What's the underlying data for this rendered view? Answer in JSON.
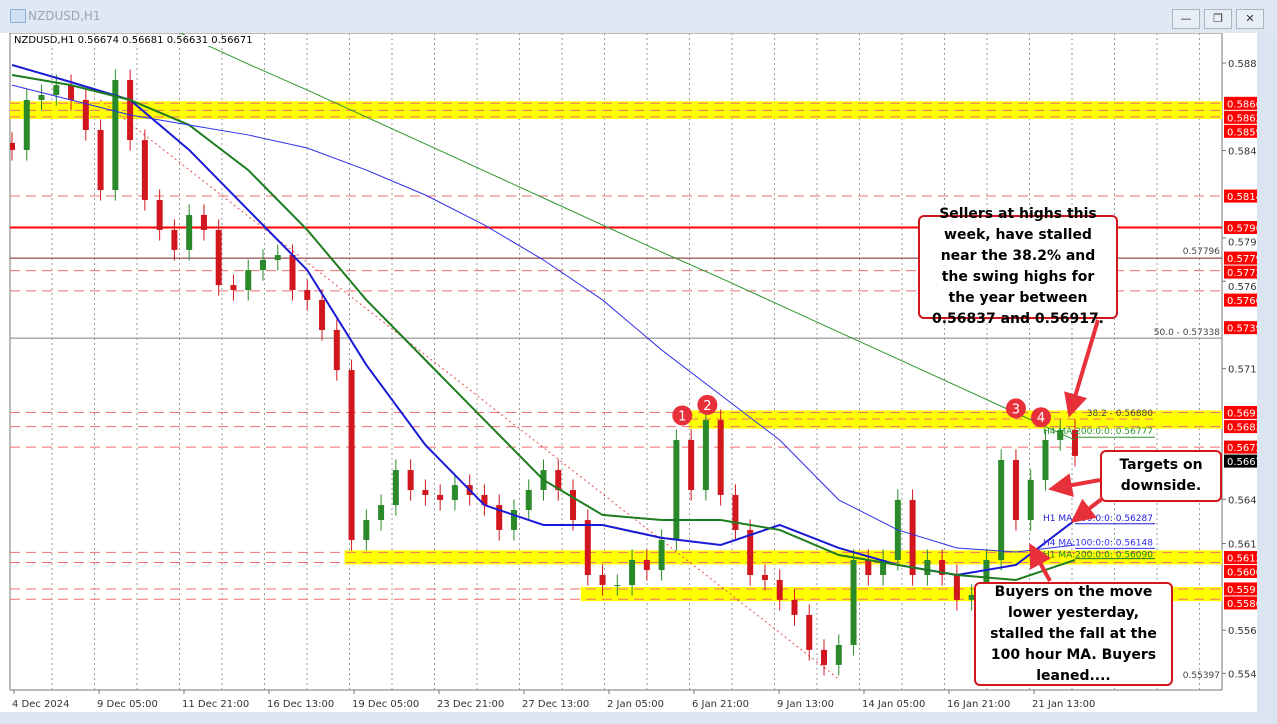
{
  "window": {
    "title": "NZDUSD,H1",
    "buttons": {
      "minimize": "—",
      "restore": "❐",
      "close": "✕"
    },
    "legend": "NZDUSD,H1  0.56674 0.56681 0.56631 0.56671"
  },
  "colors": {
    "bull": "#2a8a2a",
    "bear": "#d2161e",
    "band": "#ffff00",
    "level": "#ff0000",
    "h1_ma100": "#1a1ad6",
    "h1_ma200": "#1e7d1e",
    "h4_ma100": "#2f2fe8",
    "h4_ma200": "#2b962b",
    "fib": "#808080"
  },
  "chart_data": {
    "type": "candlestick",
    "symbol": "NZDUSD",
    "timeframe": "H1",
    "ylim": [
      0.55346,
      0.59065
    ],
    "x_tick_labels": [
      "4 Dec 2024",
      "9 Dec 05:00",
      "11 Dec 21:00",
      "16 Dec 13:00",
      "19 Dec 05:00",
      "23 Dec 21:00",
      "27 Dec 13:00",
      "2 Jan 05:00",
      "6 Jan 21:00",
      "9 Jan 13:00",
      "14 Jan 05:00",
      "16 Jan 21:00",
      "21 Jan 13:00"
    ],
    "y_tick_labels": [
      "0.58895",
      "0.58400",
      "0.57905",
      "0.57660",
      "0.57165",
      "0.56425",
      "0.56175",
      "0.55685",
      "0.55440"
    ],
    "closes": [
      0.58403,
      0.58686,
      0.58714,
      0.5877,
      0.58686,
      0.58516,
      0.58176,
      0.58799,
      0.58459,
      0.5812,
      0.5795,
      0.57837,
      0.58035,
      0.5795,
      0.57638,
      0.5761,
      0.57723,
      0.5778,
      0.57808,
      0.5761,
      0.57554,
      0.57384,
      0.57157,
      0.56195,
      0.56308,
      0.56393,
      0.56591,
      0.56478,
      0.5645,
      0.56422,
      0.56506,
      0.5645,
      0.56393,
      0.56252,
      0.56365,
      0.56478,
      0.56591,
      0.56478,
      0.56308,
      0.55997,
      0.5594,
      0.5594,
      0.56082,
      0.56025,
      0.56195,
      0.56761,
      0.56478,
      0.56874,
      0.5645,
      0.56252,
      0.55997,
      0.55969,
      0.55856,
      0.55771,
      0.55573,
      0.55488,
      0.55601,
      0.56082,
      0.55997,
      0.56082,
      0.56422,
      0.55997,
      0.56082,
      0.55997,
      0.55856,
      0.55884,
      0.56082,
      0.56648,
      0.56308,
      0.56535,
      0.56761,
      0.56818,
      0.56671
    ],
    "moving_averages": [
      {
        "name": "H1 MA:100:0:0: 0.56287",
        "color": "#1a1ad6",
        "width": 2,
        "values": [
          0.58884,
          0.58787,
          0.58686,
          0.58403,
          0.58063,
          0.57723,
          0.57186,
          0.56733,
          0.56393,
          0.5628,
          0.5628,
          0.56207,
          0.56167,
          0.5628,
          0.5615,
          0.56054,
          0.55997,
          0.56054,
          0.56308
        ],
        "last": 0.56287
      },
      {
        "name": "H1 MA:200:0:0: 0.56090",
        "color": "#1e7d1e",
        "width": 2,
        "values": [
          0.58827,
          0.5877,
          0.58686,
          0.58544,
          0.58289,
          0.5795,
          0.57554,
          0.57214,
          0.56874,
          0.56535,
          0.56337,
          0.56308,
          0.56308,
          0.56252,
          0.5611,
          0.56054,
          0.55997,
          0.55969,
          0.56082
        ],
        "last": 0.5609
      },
      {
        "name": "H4 MA:100:0:0: 0.56148",
        "color": "#2f2fe8",
        "width": 1,
        "values": [
          0.5877,
          0.58686,
          0.58601,
          0.58544,
          0.58488,
          0.58414,
          0.58289,
          0.58148,
          0.57978,
          0.5778,
          0.57554,
          0.57271,
          0.57016,
          0.56761,
          0.56422,
          0.56252,
          0.5615,
          0.56127,
          0.56167
        ],
        "last": 0.56148
      },
      {
        "name": "H4 MA:200:0:0: 0.56777",
        "color": "#2b962b",
        "width": 1,
        "values": [
          0.59501,
          0.59348,
          0.59195,
          0.59042,
          0.58889,
          0.58742,
          0.58589,
          0.58437,
          0.58284,
          0.58131,
          0.57978,
          0.57825,
          0.57678,
          0.57525,
          0.57372,
          0.5722,
          0.57067,
          0.56914,
          0.56761
        ],
        "last": 0.56777
      }
    ],
    "bands": [
      {
        "from": 0.5859,
        "to": 0.58667,
        "start": 0.0
      },
      {
        "from": 0.56837,
        "to": 0.56917,
        "start": 0.56
      },
      {
        "from": 0.56068,
        "to": 0.56125,
        "start": 0.276
      },
      {
        "from": 0.5586,
        "to": 0.55918,
        "start": 0.471
      }
    ],
    "levels": [
      {
        "price": 0.58667,
        "label": "0.58667",
        "style": "dash"
      },
      {
        "price": 0.58627,
        "label": "0.58627",
        "style": "dash"
      },
      {
        "price": 0.5859,
        "label": "0.58590",
        "style": "dash"
      },
      {
        "price": 0.58142,
        "label": "0.58142",
        "style": "dash"
      },
      {
        "price": 0.57964,
        "label": "0.57964",
        "style": "solid"
      },
      {
        "price": 0.57791,
        "label": "0.57791",
        "style": "dark"
      },
      {
        "price": 0.5772,
        "label": "0.57720",
        "style": "dash"
      },
      {
        "price": 0.57605,
        "label": "0.57605",
        "style": "dash"
      },
      {
        "price": 0.57397,
        "label": "0.57397",
        "style": "none"
      },
      {
        "price": 0.56917,
        "label": "0.56917",
        "style": "dash"
      },
      {
        "price": 0.56837,
        "label": "0.56837",
        "style": "dash"
      },
      {
        "price": 0.56721,
        "label": "0.56721",
        "style": "dash"
      },
      {
        "price": 0.56125,
        "label": "0.56125",
        "style": "dash"
      },
      {
        "price": 0.56068,
        "label": "0.56068",
        "style": "dash"
      },
      {
        "price": 0.55918,
        "label": "0.55918",
        "style": "dash"
      },
      {
        "price": 0.5586,
        "label": "0.55860",
        "style": "dash"
      }
    ],
    "current_price": {
      "price": 0.56671,
      "label": "0.56671"
    },
    "fib_labels": [
      {
        "price": 0.57338,
        "label": "50.0 - 0.57338"
      },
      {
        "price": 0.5688,
        "label": "38.2 - 0.56880"
      },
      {
        "price": 0.57796,
        "label": "0.57796"
      },
      {
        "price": 0.55397,
        "label": "0.55397"
      }
    ],
    "swing_markers": [
      {
        "label": "1",
        "index": 45.4,
        "price": 0.569
      },
      {
        "label": "2",
        "index": 47.1,
        "price": 0.5696
      },
      {
        "label": "3",
        "index": 68.0,
        "price": 0.5694
      },
      {
        "label": "4",
        "index": 69.7,
        "price": 0.5689
      }
    ]
  },
  "annotations": {
    "sellers": "Sellers at highs this week, have stalled near the 38.2% and the swing highs for the year between 0.56837 and 0.56917.",
    "targets": "Targets on downside.",
    "buyers": "Buyers on the move lower yesterday, stalled the fall at the 100 hour MA. Buyers leaned...."
  }
}
